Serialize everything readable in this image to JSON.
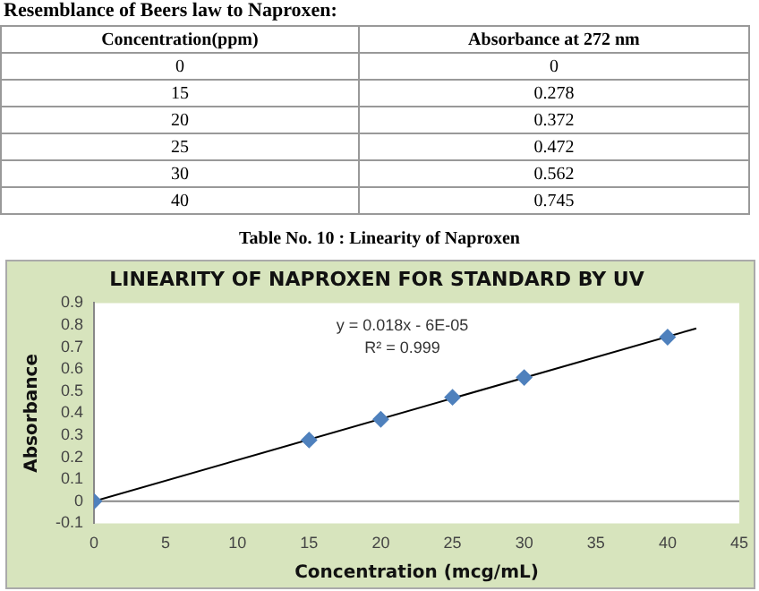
{
  "chart_data": [
    {
      "type": "other",
      "annotations": [
        "Resemblance of Beers law to Naproxen:",
        "Concentration(ppm)",
        "Absorbance at 272 nm",
        "0",
        "0",
        "15",
        "0.278",
        "20",
        "0.372",
        "25",
        "0.472",
        "30",
        "0.562",
        "40",
        "0.745",
        "Table No. 10 : Linearity of Naproxen"
      ]
    },
    {
      "type": "scatter",
      "title": "LINEARITY OF NAPROXEN FOR STANDARD BY UV",
      "xlabel": "Concentration (mcg/mL)",
      "ylabel": "Absorbance",
      "annotations": [
        "y = 0.018x - 6E-05",
        "R² = 0.999"
      ],
      "series": [
        {
          "color": "#4f81bd",
          "x": [
            0,
            15,
            20,
            25,
            30,
            40
          ],
          "values": [
            0,
            0.278,
            0.372,
            0.472,
            0.562,
            0.745
          ]
        },
        {
          "type": "line",
          "color": "#000000",
          "marker": "none",
          "x": [
            0,
            42
          ],
          "values": [
            0,
            0.785
          ]
        }
      ],
      "marker": "diamond",
      "grid": false,
      "legend": false,
      "ref_lines": [
        {
          "axis": "y",
          "value": 0,
          "color": "#888888"
        }
      ],
      "xlim": [
        0,
        45
      ],
      "xticks": [
        0,
        5,
        10,
        15,
        20,
        25,
        30,
        35,
        40,
        45
      ],
      "ylim": [
        -0.1,
        0.9
      ],
      "yticks": [
        -0.1,
        0,
        0.1,
        0.2,
        0.3,
        0.4,
        0.5,
        0.6,
        0.7,
        0.8,
        0.9
      ]
    }
  ]
}
